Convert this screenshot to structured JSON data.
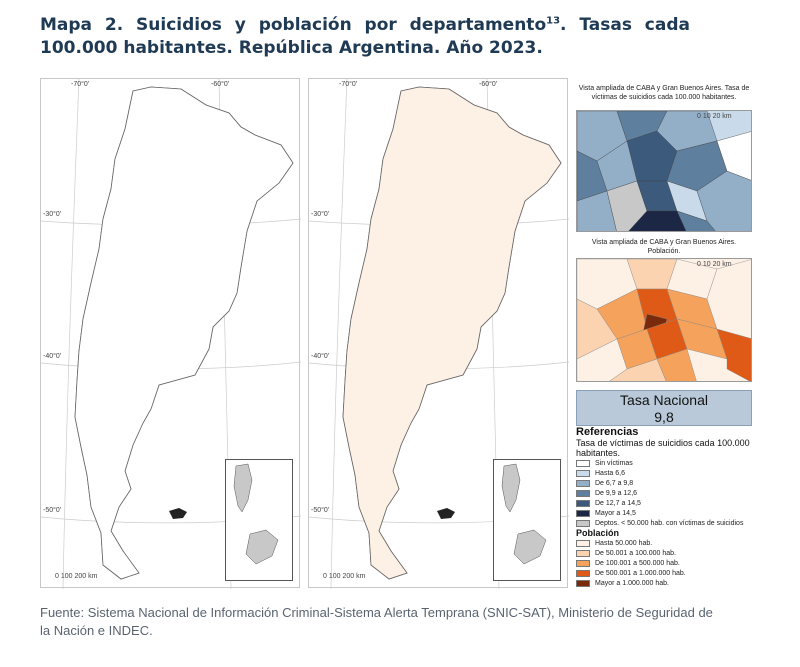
{
  "title": {
    "prefix": "Mapa 2",
    "text": ". Suicidios y población por departamento",
    "footnote": "13",
    "text2": ". Tasas cada 100.000 habitantes. República Argentina. Año 2023."
  },
  "maps": {
    "left": {
      "coords_top": [
        "-70°0'",
        "-60°0'"
      ],
      "coords_side": [
        "-30°0'",
        "-40°0'",
        "-50°0'"
      ],
      "scale": "0   100   200 km"
    },
    "right": {
      "coords_top": [
        "-70°0'",
        "-60°0'"
      ],
      "coords_side": [
        "-30°0'",
        "-40°0'",
        "-50°0'"
      ],
      "scale": "0   100   200 km"
    }
  },
  "zoom": {
    "suicides_caption": "Vista ampliada de CABA y Gran Buenos Aires. Tasa de víctimas de suicidios cada 100.000 habitantes.",
    "population_caption": "Vista ampliada de CABA y Gran Buenos Aires. Población.",
    "scale": "0   10   20 km"
  },
  "national_rate": {
    "label": "Tasa Nacional",
    "value": "9,8"
  },
  "legend": {
    "heading": "Referencias",
    "suicides_title": "Tasa de víctimas de suicidios cada 100.000 habitantes.",
    "suicides_items": [
      {
        "label": "Sin víctimas",
        "color": "#ffffff"
      },
      {
        "label": "Hasta 6,6",
        "color": "#c9dbea"
      },
      {
        "label": "De 6,7 a 9,8",
        "color": "#93afc8"
      },
      {
        "label": "De 9,9 a 12,6",
        "color": "#5e7f9e"
      },
      {
        "label": "De 12,7 a 14,5",
        "color": "#3b5a7c"
      },
      {
        "label": "Mayor a 14,5",
        "color": "#1c2745"
      },
      {
        "label": "Deptos. < 50.000 hab. con víctimas de suicidios",
        "color": "#c8c8c8"
      }
    ],
    "population_title": "Población",
    "population_items": [
      {
        "label": "Hasta 50.000 hab.",
        "color": "#fdf1e6"
      },
      {
        "label": "De 50.001 a 100.000 hab.",
        "color": "#fcd3b0"
      },
      {
        "label": "De 100.001 a 500.000 hab.",
        "color": "#f5a25c"
      },
      {
        "label": "De 500.001 a 1.000.000 hab.",
        "color": "#df5a16"
      },
      {
        "label": "Mayor a 1.000.000 hab.",
        "color": "#7a2a0a"
      }
    ]
  },
  "source": "Fuente: Sistema Nacional de Información Criminal-Sistema Alerta Temprana (SNIC-SAT), Ministerio de Seguridad de la Nación e INDEC."
}
